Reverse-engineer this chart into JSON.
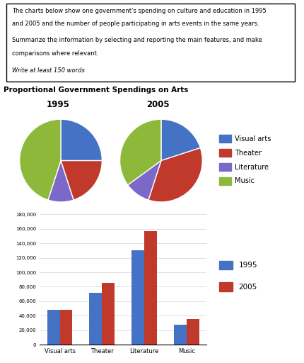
{
  "pie_title": "Proportional Government Spendings on Arts",
  "pie_1995_label": "1995",
  "pie_2005_label": "2005",
  "pie_colors": [
    "#4472c4",
    "#c0392b",
    "#7b68c8",
    "#8db83a"
  ],
  "pie_legend_labels": [
    "Visual arts",
    "Theater",
    "Literature",
    "Music"
  ],
  "pie_1995_sizes": [
    25,
    20,
    10,
    45
  ],
  "pie_2005_sizes": [
    20,
    35,
    10,
    35
  ],
  "bar_categories": [
    "Visual arts",
    "Theater",
    "Literature",
    "Music"
  ],
  "bar_1995": [
    48000,
    72000,
    130000,
    28000
  ],
  "bar_2005": [
    48000,
    85000,
    157000,
    36000
  ],
  "bar_color_1995": "#4472c4",
  "bar_color_2005": "#c0392b",
  "bar_yticks": [
    0,
    20000,
    40000,
    60000,
    80000,
    100000,
    120000,
    140000,
    160000,
    180000
  ],
  "bar_ytick_labels": [
    "0",
    "20,000",
    "40,000",
    "60,000",
    "80,000",
    "100,000",
    "120,000",
    "140,000",
    "160,000",
    "180,000"
  ],
  "bar_legend_1995": "1995",
  "bar_legend_2005": "2005",
  "fig_bg": "#ffffff",
  "textbox_line1": "The charts below show one government’s spending on culture and education in 1995",
  "textbox_line2": "and 2005 and the number of people participating in arts events in the same years.",
  "textbox_line3": "Summarize the information by selecting and reporting the main features, and make",
  "textbox_line4": "comparisons where relevant.",
  "textbox_line5": "Write at least 150 words"
}
